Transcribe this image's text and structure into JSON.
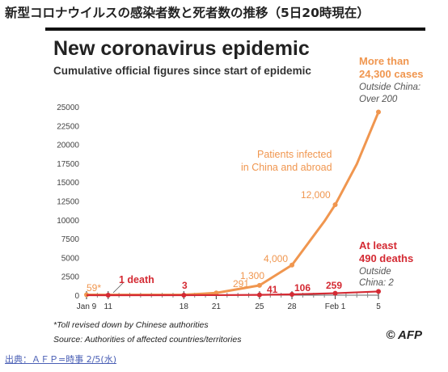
{
  "headline": "新型コロナウイルスの感染者数と死者数の推移（5日20時現在）",
  "source_link": "出典：ＡＦＰ=時事 2/5(水)",
  "logo": "© AFP",
  "chart_data": {
    "type": "line",
    "title": "New coronavirus epidemic",
    "subtitle": "Cumulative official figures since start of epidemic",
    "x_ticks": [
      "Jan 9",
      "11",
      "18",
      "21",
      "25",
      "28",
      "Feb 1",
      "5"
    ],
    "ylim": [
      0,
      25000
    ],
    "y_ticks": [
      "25000",
      "22500",
      "20000",
      "17500",
      "15000",
      "12500",
      "10000",
      "7500",
      "5000",
      "2500",
      "0"
    ],
    "y_tick_values": [
      25000,
      22500,
      20000,
      17500,
      15000,
      12500,
      10000,
      7500,
      5000,
      2500,
      0
    ],
    "grid": false,
    "series": [
      {
        "name": "infected",
        "color": "#f0964f",
        "x": [
          "2020-01-09",
          "2020-01-11",
          "2020-01-18",
          "2020-01-21",
          "2020-01-25",
          "2020-01-28",
          "2020-01-31",
          "2020-02-01",
          "2020-02-03",
          "2020-02-05"
        ],
        "values": [
          59,
          41,
          60,
          291,
          1300,
          4000,
          9800,
          12000,
          17400,
          24300
        ]
      },
      {
        "name": "deaths",
        "color": "#d42a33",
        "x": [
          "2020-01-09",
          "2020-01-11",
          "2020-01-18",
          "2020-01-21",
          "2020-01-25",
          "2020-01-28",
          "2020-02-01",
          "2020-02-05"
        ],
        "values": [
          0,
          1,
          3,
          6,
          41,
          106,
          259,
          490
        ]
      }
    ],
    "annotations": {
      "infected_series_label": [
        "Patients infected",
        "in China and abroad"
      ],
      "infected_values": [
        "59*",
        "291",
        "1,300",
        "4,000",
        "12,000"
      ],
      "death_values": [
        "1 death",
        "3",
        "41",
        "106",
        "259"
      ],
      "infected_total": [
        "More than",
        "24,300 cases"
      ],
      "infected_outside": [
        "Outside China:",
        "Over 200"
      ],
      "deaths_total": [
        "At least",
        "490 deaths"
      ],
      "deaths_outside": [
        "Outside",
        "China: 2"
      ]
    },
    "footnotes": {
      "note": "*Toll revised down by Chinese authorities",
      "source": "Source: Authorities of affected countries/territories"
    }
  }
}
